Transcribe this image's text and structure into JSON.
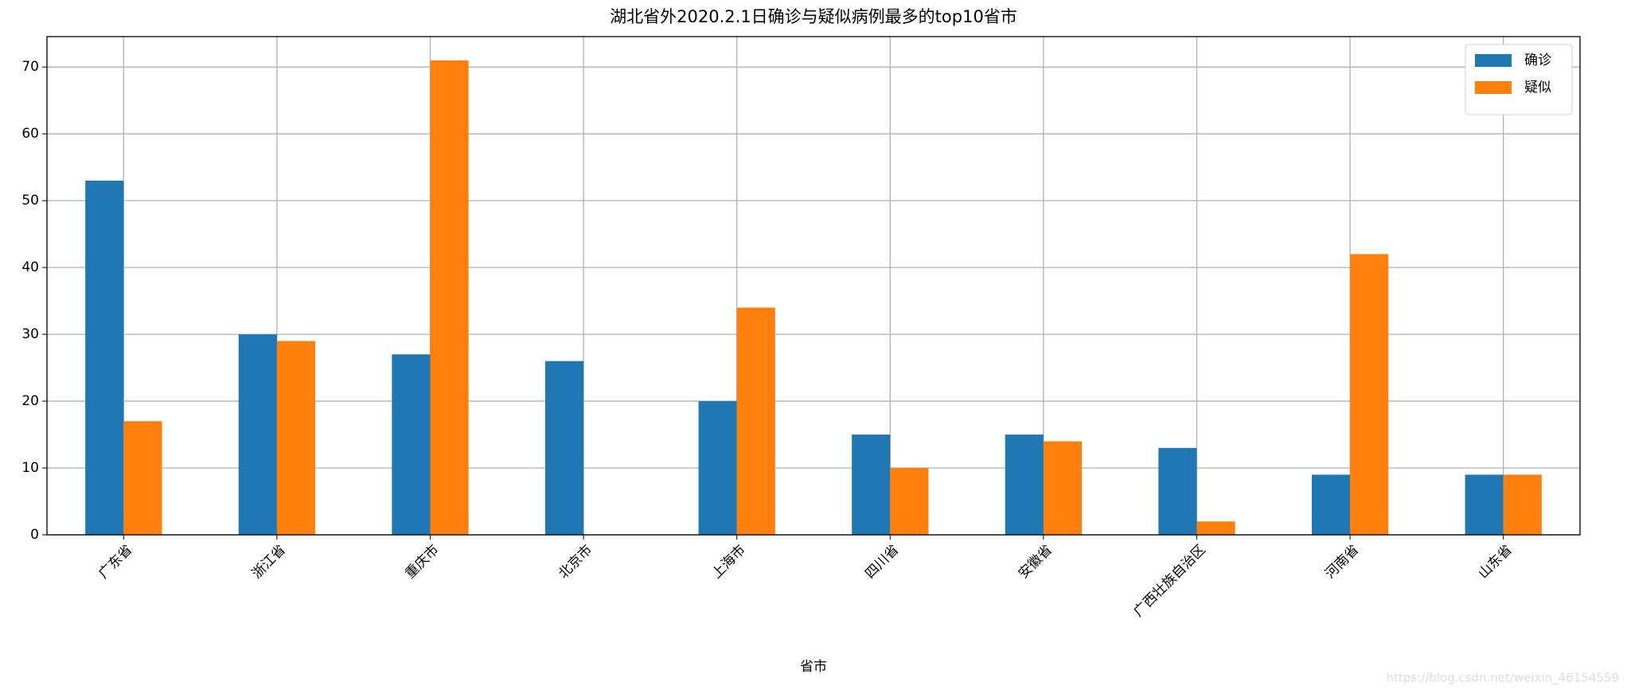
{
  "chart_data": {
    "type": "bar",
    "title": "湖北省外2020.2.1日确诊与疑似病例最多的top10省市",
    "x_label": "省市",
    "categories": [
      "广东省",
      "浙江省",
      "重庆市",
      "北京市",
      "上海市",
      "四川省",
      "安徽省",
      "广西壮族自治区",
      "河南省",
      "山东省"
    ],
    "series": [
      {
        "name": "确诊",
        "color": "#1f77b4",
        "values": [
          53,
          30,
          27,
          26,
          20,
          15,
          15,
          13,
          9,
          9
        ]
      },
      {
        "name": "疑似",
        "color": "#ff7f0e",
        "values": [
          17,
          29,
          71,
          0,
          34,
          10,
          14,
          2,
          42,
          9
        ]
      }
    ],
    "ylim": [
      0,
      74.55
    ],
    "yticks": [
      0,
      10,
      20,
      30,
      40,
      50,
      60,
      70
    ],
    "grid": true,
    "legend": "upper right",
    "watermark": "https://blog.csdn.net/weixin_46154559"
  }
}
